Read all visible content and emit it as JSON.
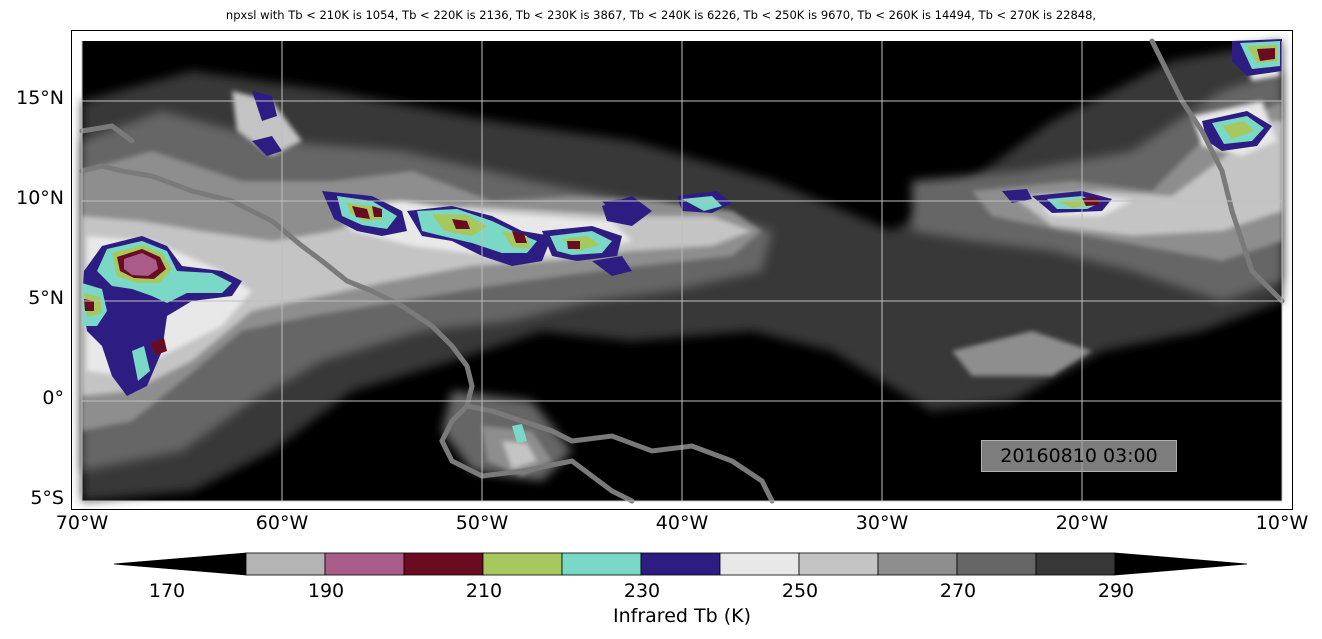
{
  "title": "npxsl with Tb < 210K is 1054,  Tb < 220K is 2136,  Tb < 230K is 3867,  Tb < 240K is 6226,  Tb < 250K is 9670,  Tb < 260K is 14494,  Tb < 270K is 22848,",
  "timestamp": "20160810 03:00",
  "lat_labels": [
    "15°N",
    "10°N",
    "5°N",
    "0°",
    "5°S"
  ],
  "lon_labels": [
    "70°W",
    "60°W",
    "50°W",
    "40°W",
    "30°W",
    "20°W",
    "10°W"
  ],
  "colorbar": {
    "title": "Infrared Tb (K)",
    "tick_labels": [
      "170",
      "190",
      "210",
      "230",
      "250",
      "270",
      "290"
    ],
    "colors": [
      "#000000",
      "#b4b4b4",
      "#a95c8a",
      "#6b0b22",
      "#a7c85e",
      "#79d8c6",
      "#2d1d82",
      "#e8e8e8",
      "#c4c4c4",
      "#8e8e8e",
      "#666666",
      "#373737",
      "#000000"
    ]
  },
  "map": {
    "extent": {
      "lon": [
        -70,
        -10
      ],
      "lat": [
        -5,
        18
      ]
    },
    "counts": [
      {
        "threshold_K": 210,
        "pixels": 1054
      },
      {
        "threshold_K": 220,
        "pixels": 2136
      },
      {
        "threshold_K": 230,
        "pixels": 3867
      },
      {
        "threshold_K": 240,
        "pixels": 6226
      },
      {
        "threshold_K": 250,
        "pixels": 9670
      },
      {
        "threshold_K": 260,
        "pixels": 14494
      },
      {
        "threshold_K": 270,
        "pixels": 22848
      }
    ]
  }
}
